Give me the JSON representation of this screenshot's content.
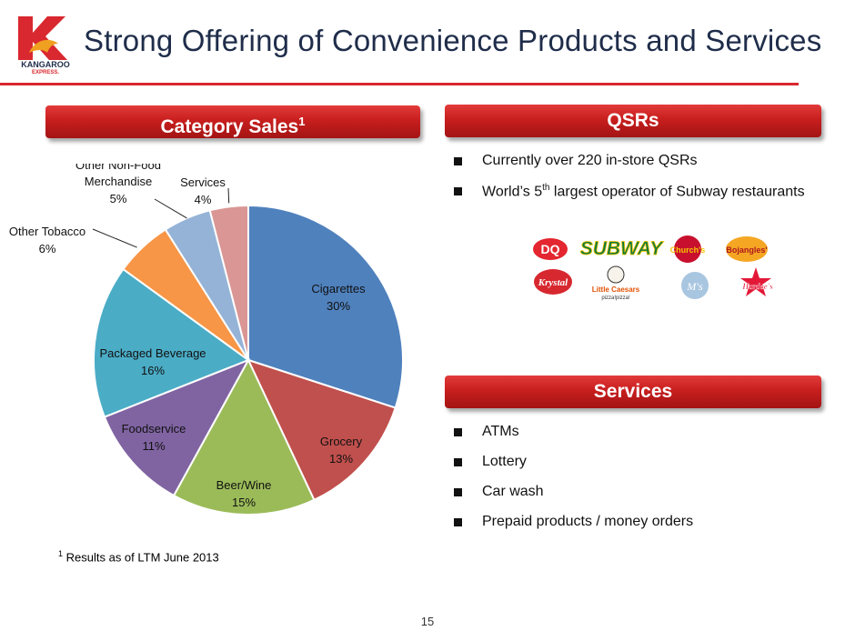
{
  "header": {
    "title": "Strong Offering of Convenience Products and Services",
    "logo_text": "KANGAROO EXPRESS."
  },
  "banners": {
    "category_sales": "Category Sales",
    "category_sales_sup": "1",
    "qsrs": "QSRs",
    "services": "Services"
  },
  "qsrs": {
    "items": [
      {
        "text": "Currently over 220 in-store QSRs",
        "sup": "",
        "tail": ""
      },
      {
        "text": "World’s 5",
        "sup": "th",
        "tail": " largest operator of Subway restaurants"
      }
    ],
    "brand_logos": [
      "DQ",
      "SUBWAY",
      "Church's",
      "Bojangles'",
      "Krystal",
      "Little Caesars",
      "Aunt M's",
      "Hardee's"
    ]
  },
  "services": {
    "items": [
      "ATMs",
      "Lottery",
      "Car wash",
      "Prepaid products / money orders"
    ]
  },
  "footnote": {
    "sup": "1",
    "text": " Results as of LTM June 2013"
  },
  "page_number": "15",
  "colors": {
    "accent_red": "#d9282f",
    "title_color": "#1f2d4a"
  },
  "chart_data": {
    "type": "pie",
    "title": "",
    "slices": [
      {
        "label": "Cigarettes",
        "value": 30,
        "value_label": "30%",
        "color": "#4f81bd"
      },
      {
        "label": "Grocery",
        "value": 13,
        "value_label": "13%",
        "color": "#c0504d"
      },
      {
        "label": "Beer/Wine",
        "value": 15,
        "value_label": "15%",
        "color": "#9bbb59"
      },
      {
        "label": "Foodservice",
        "value": 11,
        "value_label": "11%",
        "color": "#8064a2"
      },
      {
        "label": "Packaged Beverage",
        "value": 16,
        "value_label": "16%",
        "color": "#4bacc6"
      },
      {
        "label": "Other Tobacco",
        "value": 6,
        "value_label": "6%",
        "color": "#f79646"
      },
      {
        "label": "Other Non-Food Merchandise",
        "value": 5,
        "value_label": "5%",
        "color": "#95b3d7"
      },
      {
        "label": "Services",
        "value": 4,
        "value_label": "4%",
        "color": "#d99694"
      }
    ],
    "legend": "none"
  }
}
